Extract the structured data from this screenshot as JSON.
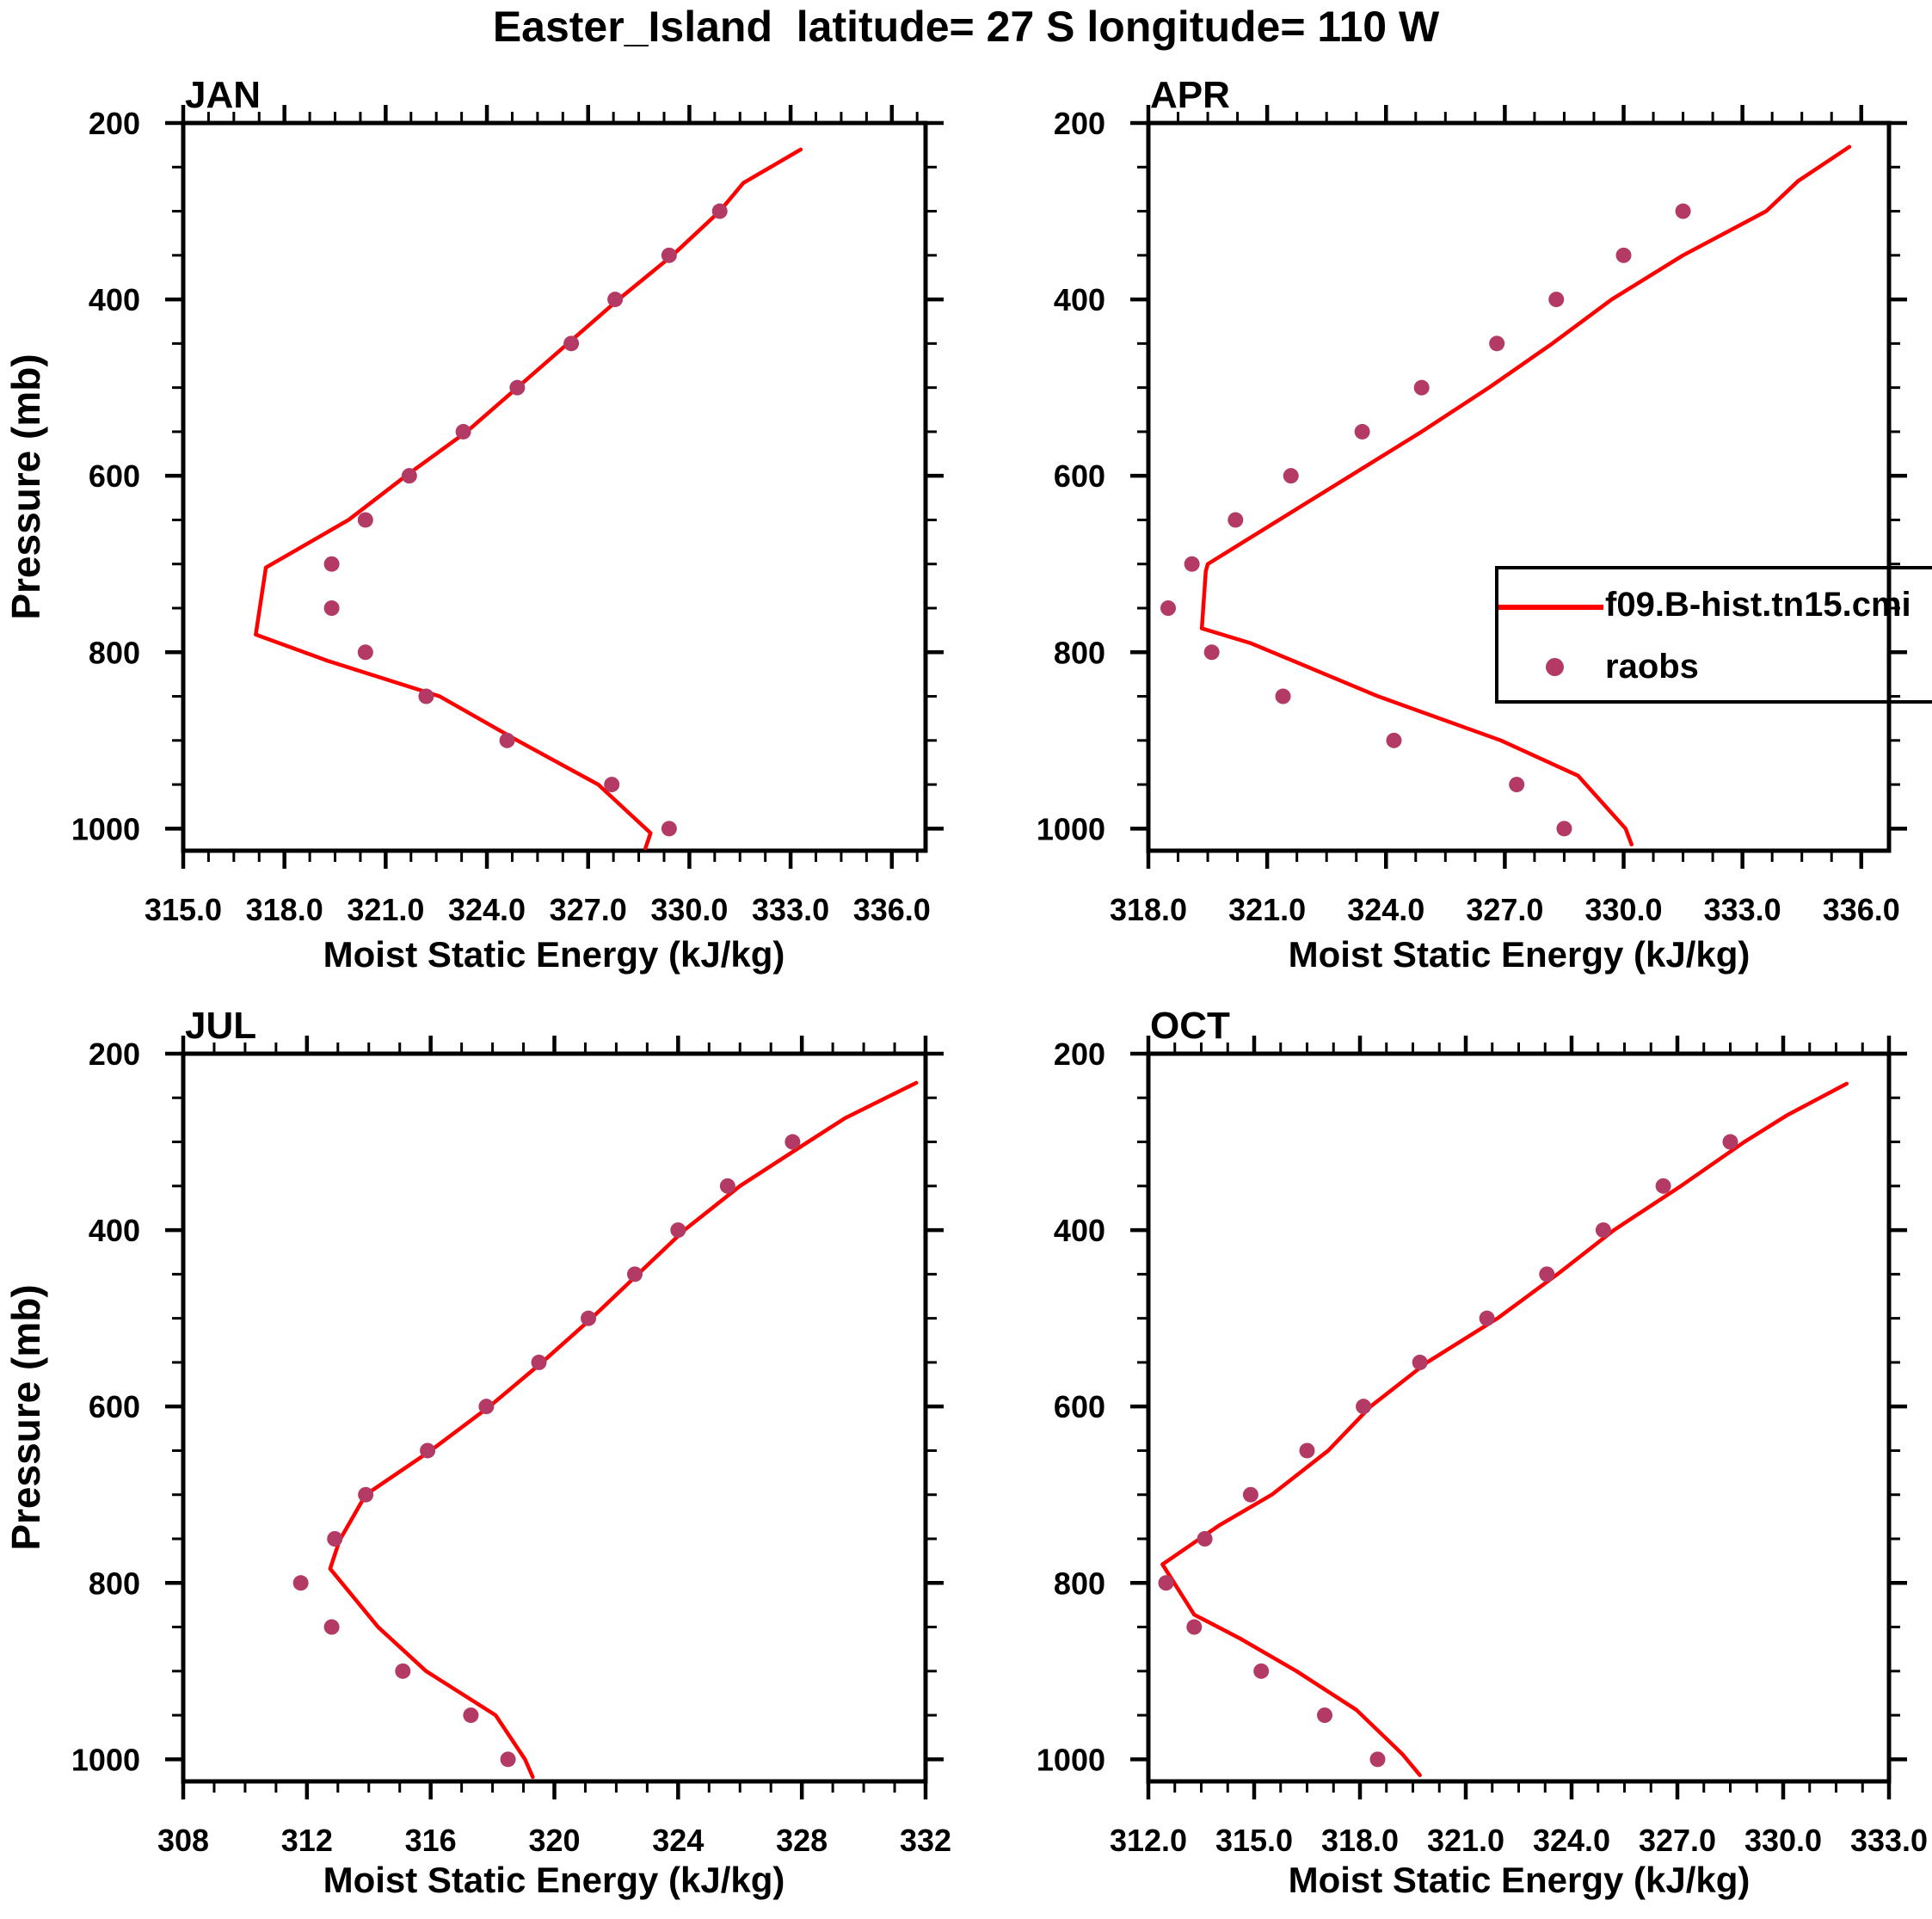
{
  "title": "Easter_Island  latitude= 27 S longitude= 110 W",
  "axes": {
    "xlabel": "Moist Static Energy (kJ/kg)",
    "ylabel": "Pressure (mb)"
  },
  "legend": {
    "line_label": "f09.B-hist.tn15.cmi",
    "dot_label": "raobs",
    "position": "right-middle-of-APR-panel"
  },
  "colors": {
    "model_line": "#ff0000",
    "raobs_dot": "#b23a64",
    "axis": "#000000",
    "background": "#ffffff"
  },
  "chart_data": [
    {
      "type": "line",
      "month": "JAN",
      "xlabel": "Moist Static Energy (kJ/kg)",
      "ylabel": "Pressure (mb)",
      "xlim": [
        315.0,
        337.0
      ],
      "xtick_values": [
        315,
        318,
        321,
        324,
        327,
        330,
        333,
        336
      ],
      "xtick_labels": [
        "315.0",
        "318.0",
        "321.0",
        "324.0",
        "327.0",
        "330.0",
        "333.0",
        "336.0"
      ],
      "x_minor_step": 0.75,
      "ylim": [
        200,
        1025
      ],
      "y_axis_inverted": true,
      "ytick_values": [
        200,
        400,
        600,
        800,
        1000
      ],
      "ytick_labels": [
        "200",
        "400",
        "600",
        "800",
        "1000"
      ],
      "y_minor_step": 50,
      "grid": false,
      "series": [
        {
          "name": "f09.B-hist.tn15.cmi",
          "type": "line",
          "points_pressure_value": [
            [
              230,
              333.3
            ],
            [
              268,
              331.6
            ],
            [
              300,
              330.9
            ],
            [
              350,
              329.5
            ],
            [
              400,
              327.9
            ],
            [
              450,
              326.4
            ],
            [
              500,
              324.9
            ],
            [
              550,
              323.4
            ],
            [
              600,
              321.6
            ],
            [
              650,
              319.9
            ],
            [
              704,
              317.45
            ],
            [
              780,
              317.15
            ],
            [
              810,
              319.3
            ],
            [
              850,
              322.6
            ],
            [
              900,
              324.9
            ],
            [
              950,
              327.3
            ],
            [
              1005,
              328.85
            ],
            [
              1022,
              328.7
            ]
          ]
        },
        {
          "name": "raobs",
          "type": "scatter",
          "points_pressure_value": [
            [
              300,
              330.9
            ],
            [
              350,
              329.4
            ],
            [
              400,
              327.8
            ],
            [
              450,
              326.5
            ],
            [
              500,
              324.9
            ],
            [
              550,
              323.3
            ],
            [
              600,
              321.7
            ],
            [
              650,
              320.4
            ],
            [
              700,
              319.4
            ],
            [
              750,
              319.4
            ],
            [
              800,
              320.4
            ],
            [
              850,
              322.2
            ],
            [
              900,
              324.6
            ],
            [
              950,
              327.7
            ],
            [
              1000,
              329.4
            ]
          ]
        }
      ]
    },
    {
      "type": "line",
      "month": "APR",
      "xlabel": "Moist Static Energy (kJ/kg)",
      "ylabel": "Pressure (mb)",
      "xlim": [
        318.0,
        336.7
      ],
      "xtick_values": [
        318,
        321,
        324,
        327,
        330,
        333,
        336
      ],
      "xtick_labels": [
        "318.0",
        "321.0",
        "324.0",
        "327.0",
        "330.0",
        "333.0",
        "336.0"
      ],
      "x_minor_step": 0.75,
      "ylim": [
        200,
        1025
      ],
      "y_axis_inverted": true,
      "ytick_values": [
        200,
        400,
        600,
        800,
        1000
      ],
      "ytick_labels": [
        "200",
        "400",
        "600",
        "800",
        "1000"
      ],
      "y_minor_step": 50,
      "grid": false,
      "series": [
        {
          "name": "f09.B-hist.tn15.cmi",
          "type": "line",
          "points_pressure_value": [
            [
              227,
              335.7
            ],
            [
              266,
              334.4
            ],
            [
              300,
              333.6
            ],
            [
              350,
              331.5
            ],
            [
              400,
              329.7
            ],
            [
              450,
              328.2
            ],
            [
              500,
              326.6
            ],
            [
              550,
              324.9
            ],
            [
              600,
              323.1
            ],
            [
              650,
              321.3
            ],
            [
              700,
              319.5
            ],
            [
              708,
              319.45
            ],
            [
              773,
              319.35
            ],
            [
              790,
              320.6
            ],
            [
              850,
              323.8
            ],
            [
              900,
              326.9
            ],
            [
              940,
              328.85
            ],
            [
              1000,
              330.05
            ],
            [
              1018,
              330.2
            ]
          ]
        },
        {
          "name": "raobs",
          "type": "scatter",
          "points_pressure_value": [
            [
              300,
              331.5
            ],
            [
              350,
              330.0
            ],
            [
              400,
              328.3
            ],
            [
              450,
              326.8
            ],
            [
              500,
              324.9
            ],
            [
              550,
              323.4
            ],
            [
              600,
              321.6
            ],
            [
              650,
              320.2
            ],
            [
              700,
              319.1
            ],
            [
              750,
              318.5
            ],
            [
              800,
              319.6
            ],
            [
              850,
              321.4
            ],
            [
              900,
              324.2
            ],
            [
              950,
              327.3
            ],
            [
              1000,
              328.5
            ]
          ]
        }
      ]
    },
    {
      "type": "line",
      "month": "JUL",
      "xlabel": "Moist Static Energy (kJ/kg)",
      "ylabel": "Pressure (mb)",
      "xlim": [
        308,
        332
      ],
      "xtick_values": [
        308,
        312,
        316,
        320,
        324,
        328,
        332
      ],
      "xtick_labels": [
        "308",
        "312",
        "316",
        "320",
        "324",
        "328",
        "332"
      ],
      "x_minor_step": 1,
      "ylim": [
        200,
        1025
      ],
      "y_axis_inverted": true,
      "ytick_values": [
        200,
        400,
        600,
        800,
        1000
      ],
      "ytick_labels": [
        "200",
        "400",
        "600",
        "800",
        "1000"
      ],
      "y_minor_step": 50,
      "grid": false,
      "series": [
        {
          "name": "f09.B-hist.tn15.cmi",
          "type": "line",
          "points_pressure_value": [
            [
              233,
              331.7
            ],
            [
              273,
              329.4
            ],
            [
              300,
              328.2
            ],
            [
              350,
              326.0
            ],
            [
              400,
              324.2
            ],
            [
              450,
              322.7
            ],
            [
              500,
              321.2
            ],
            [
              550,
              319.6
            ],
            [
              600,
              317.9
            ],
            [
              650,
              316.0
            ],
            [
              700,
              313.9
            ],
            [
              752,
              313.05
            ],
            [
              784,
              312.75
            ],
            [
              850,
              314.3
            ],
            [
              900,
              315.85
            ],
            [
              950,
              318.1
            ],
            [
              1000,
              319.05
            ],
            [
              1020,
              319.3
            ]
          ]
        },
        {
          "name": "raobs",
          "type": "scatter",
          "points_pressure_value": [
            [
              300,
              327.7
            ],
            [
              350,
              325.6
            ],
            [
              400,
              324.0
            ],
            [
              450,
              322.6
            ],
            [
              500,
              321.1
            ],
            [
              550,
              319.5
            ],
            [
              600,
              317.8
            ],
            [
              650,
              315.9
            ],
            [
              700,
              313.9
            ],
            [
              750,
              312.9
            ],
            [
              800,
              311.8
            ],
            [
              850,
              312.8
            ],
            [
              900,
              315.1
            ],
            [
              950,
              317.3
            ],
            [
              1000,
              318.5
            ]
          ]
        }
      ]
    },
    {
      "type": "line",
      "month": "OCT",
      "xlabel": "Moist Static Energy (kJ/kg)",
      "ylabel": "Pressure (mb)",
      "xlim": [
        312.0,
        333.0
      ],
      "xtick_values": [
        312,
        315,
        318,
        321,
        324,
        327,
        330,
        333
      ],
      "xtick_labels": [
        "312.0",
        "315.0",
        "318.0",
        "321.0",
        "324.0",
        "327.0",
        "330.0",
        "333.0"
      ],
      "x_minor_step": 0.75,
      "ylim": [
        200,
        1025
      ],
      "y_axis_inverted": true,
      "ytick_values": [
        200,
        400,
        600,
        800,
        1000
      ],
      "ytick_labels": [
        "200",
        "400",
        "600",
        "800",
        "1000"
      ],
      "y_minor_step": 50,
      "grid": false,
      "series": [
        {
          "name": "f09.B-hist.tn15.cmi",
          "type": "line",
          "points_pressure_value": [
            [
              234,
              331.8
            ],
            [
              270,
              330.1
            ],
            [
              300,
              328.9
            ],
            [
              350,
              327.1
            ],
            [
              400,
              325.2
            ],
            [
              450,
              323.6
            ],
            [
              500,
              321.9
            ],
            [
              550,
              319.9
            ],
            [
              600,
              318.3
            ],
            [
              650,
              317.1
            ],
            [
              700,
              315.5
            ],
            [
              735,
              314.0
            ],
            [
              779,
              312.4
            ],
            [
              836,
              313.3
            ],
            [
              863,
              314.6
            ],
            [
              900,
              316.2
            ],
            [
              944,
              317.9
            ],
            [
              994,
              319.2
            ],
            [
              1018,
              319.7
            ]
          ]
        },
        {
          "name": "raobs",
          "type": "scatter",
          "points_pressure_value": [
            [
              300,
              328.5
            ],
            [
              350,
              326.6
            ],
            [
              400,
              324.9
            ],
            [
              450,
              323.3
            ],
            [
              500,
              321.6
            ],
            [
              550,
              319.7
            ],
            [
              600,
              318.1
            ],
            [
              650,
              316.5
            ],
            [
              700,
              314.9
            ],
            [
              750,
              313.6
            ],
            [
              800,
              312.5
            ],
            [
              850,
              313.3
            ],
            [
              900,
              315.2
            ],
            [
              950,
              317.0
            ],
            [
              1000,
              318.5
            ]
          ]
        }
      ]
    }
  ]
}
